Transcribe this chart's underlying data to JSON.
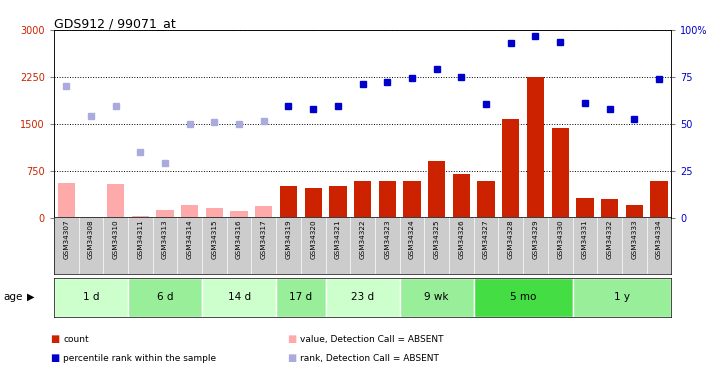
{
  "title": "GDS912 / 99071_at",
  "samples": [
    "GSM34307",
    "GSM34308",
    "GSM34310",
    "GSM34311",
    "GSM34313",
    "GSM34314",
    "GSM34315",
    "GSM34316",
    "GSM34317",
    "GSM34319",
    "GSM34320",
    "GSM34321",
    "GSM34322",
    "GSM34323",
    "GSM34324",
    "GSM34325",
    "GSM34326",
    "GSM34327",
    "GSM34328",
    "GSM34329",
    "GSM34330",
    "GSM34331",
    "GSM34332",
    "GSM34333",
    "GSM34334"
  ],
  "absent_mask": [
    true,
    true,
    true,
    true,
    true,
    true,
    true,
    true,
    true,
    false,
    false,
    false,
    false,
    false,
    false,
    false,
    false,
    false,
    false,
    false,
    false,
    false,
    false,
    false,
    false
  ],
  "count_values": [
    560,
    10,
    540,
    30,
    120,
    200,
    150,
    100,
    180,
    500,
    470,
    510,
    590,
    580,
    580,
    900,
    690,
    580,
    1580,
    2250,
    1430,
    310,
    290,
    200,
    590
  ],
  "rank_values": [
    2100,
    1620,
    1780,
    1050,
    880,
    1490,
    1520,
    1490,
    1550,
    1790,
    1730,
    1780,
    2130,
    2170,
    2230,
    2380,
    2250,
    1810,
    2800,
    2900,
    2810,
    1840,
    1740,
    1580,
    2210
  ],
  "age_groups": [
    {
      "label": "1 d",
      "start": 0,
      "end": 3,
      "color": "#ccffcc"
    },
    {
      "label": "6 d",
      "start": 3,
      "end": 6,
      "color": "#99ee99"
    },
    {
      "label": "14 d",
      "start": 6,
      "end": 9,
      "color": "#ccffcc"
    },
    {
      "label": "17 d",
      "start": 9,
      "end": 11,
      "color": "#99ee99"
    },
    {
      "label": "23 d",
      "start": 11,
      "end": 14,
      "color": "#ccffcc"
    },
    {
      "label": "9 wk",
      "start": 14,
      "end": 17,
      "color": "#99ee99"
    },
    {
      "label": "5 mo",
      "start": 17,
      "end": 21,
      "color": "#44dd44"
    },
    {
      "label": "1 y",
      "start": 21,
      "end": 25,
      "color": "#99ee99"
    }
  ],
  "ylim_left": [
    0,
    3000
  ],
  "ylim_right": [
    0,
    100
  ],
  "yticks_left": [
    0,
    750,
    1500,
    2250,
    3000
  ],
  "ytick_labels_left": [
    "0",
    "750",
    "1500",
    "2250",
    "3000"
  ],
  "yticks_right": [
    0,
    25,
    50,
    75,
    100
  ],
  "ytick_labels_right": [
    "0",
    "25",
    "50",
    "75",
    "100%"
  ],
  "bar_color_present": "#cc2200",
  "bar_color_absent": "#ffaaaa",
  "dot_color_present": "#0000cc",
  "dot_color_absent": "#aaaadd",
  "bg_color": "#ffffff",
  "plot_bg": "#ffffff",
  "xtick_bg": "#cccccc"
}
